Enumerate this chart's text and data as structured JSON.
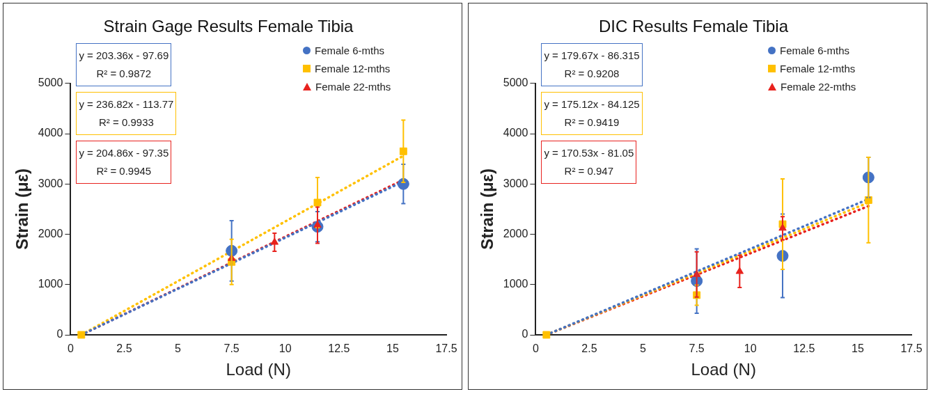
{
  "chart_data": [
    {
      "type": "scatter",
      "title": "Strain Gage Results Female Tibia",
      "xlabel": "Load (N)",
      "ylabel": "Strain (με)",
      "xlim": [
        0,
        17.5
      ],
      "xticks": [
        0,
        2.5,
        5,
        7.5,
        10,
        12.5,
        15,
        17.5
      ],
      "ylim": [
        0,
        5000
      ],
      "yticks": [
        0,
        1000,
        2000,
        3000,
        4000,
        5000
      ],
      "grid": false,
      "legend": "top right",
      "annotations": [
        "y = 203.36x - 97.69",
        "R² = 0.9872",
        "y = 236.82x - 113.77",
        "R² = 0.9933",
        "y = 204.86x - 97.35",
        "R² = 0.9945"
      ],
      "series": [
        {
          "name": "Female 6-mths",
          "color": "#4472c4",
          "marker": "circle",
          "x": [
            7.5,
            11.5,
            15.5
          ],
          "values": [
            1670,
            2150,
            3000
          ],
          "errors": [
            600,
            300,
            390
          ]
        },
        {
          "name": "Female 12-mths",
          "color": "#ffc000",
          "marker": "square",
          "x": [
            0.5,
            7.5,
            11.5,
            15.5
          ],
          "values": [
            0,
            1450,
            2630,
            3650
          ],
          "errors": [
            null,
            450,
            500,
            620
          ]
        },
        {
          "name": "Female 22-mths",
          "color": "#e8221e",
          "marker": "triangle",
          "x": [
            7.5,
            9.5,
            11.5
          ],
          "values": [
            1520,
            1840,
            2180
          ],
          "errors": [
            null,
            180,
            360
          ]
        },
        {
          "type": "line",
          "color": "#4472c4",
          "line_style": "dotted",
          "marker": "none",
          "x": [
            0.5,
            15.5
          ],
          "values": [
            0,
            3050
          ]
        },
        {
          "type": "line",
          "color": "#ffc000",
          "line_style": "dotted",
          "marker": "none",
          "x": [
            0.5,
            15.5
          ],
          "values": [
            0,
            3560
          ]
        },
        {
          "type": "line",
          "color": "#e8221e",
          "line_style": "dotted",
          "marker": "none",
          "x": [
            0.5,
            15.5
          ],
          "values": [
            0,
            3080
          ]
        }
      ]
    },
    {
      "type": "scatter",
      "title": "DIC Results Female Tibia",
      "xlabel": "Load (N)",
      "ylabel": "Strain (με)",
      "xlim": [
        0,
        17.5
      ],
      "xticks": [
        0,
        2.5,
        5,
        7.5,
        10,
        12.5,
        15,
        17.5
      ],
      "ylim": [
        0,
        5000
      ],
      "yticks": [
        0,
        1000,
        2000,
        3000,
        4000,
        5000
      ],
      "grid": false,
      "legend": "top right",
      "annotations": [
        "y = 179.67x - 86.315",
        "R² = 0.9208",
        "y = 175.12x - 84.125",
        "R² = 0.9419",
        "y = 170.53x - 81.05",
        "R² = 0.947"
      ],
      "series": [
        {
          "name": "Female 6-mths",
          "color": "#4472c4",
          "marker": "circle",
          "x": [
            7.5,
            11.5,
            15.5
          ],
          "values": [
            1070,
            1570,
            3130
          ],
          "errors": [
            640,
            830,
            400
          ]
        },
        {
          "name": "Female 12-mths",
          "color": "#ffc000",
          "marker": "square",
          "x": [
            0.5,
            7.5,
            11.5,
            15.5
          ],
          "values": [
            0,
            790,
            2200,
            2680
          ],
          "errors": [
            null,
            200,
            900,
            850
          ]
        },
        {
          "name": "Female 22-mths",
          "color": "#e8221e",
          "marker": "triangle",
          "x": [
            7.5,
            9.5,
            11.5
          ],
          "values": [
            1200,
            1260,
            2120
          ],
          "errors": [
            450,
            320,
            230
          ]
        },
        {
          "type": "line",
          "color": "#4472c4",
          "line_style": "dotted",
          "marker": "none",
          "x": [
            0.5,
            15.5
          ],
          "values": [
            0,
            2700
          ]
        },
        {
          "type": "line",
          "color": "#ffc000",
          "line_style": "dotted",
          "marker": "none",
          "x": [
            0.5,
            15.5
          ],
          "values": [
            0,
            2630
          ]
        },
        {
          "type": "line",
          "color": "#e8221e",
          "line_style": "dotted",
          "marker": "none",
          "x": [
            0.5,
            15.5
          ],
          "values": [
            0,
            2560
          ]
        }
      ]
    }
  ]
}
